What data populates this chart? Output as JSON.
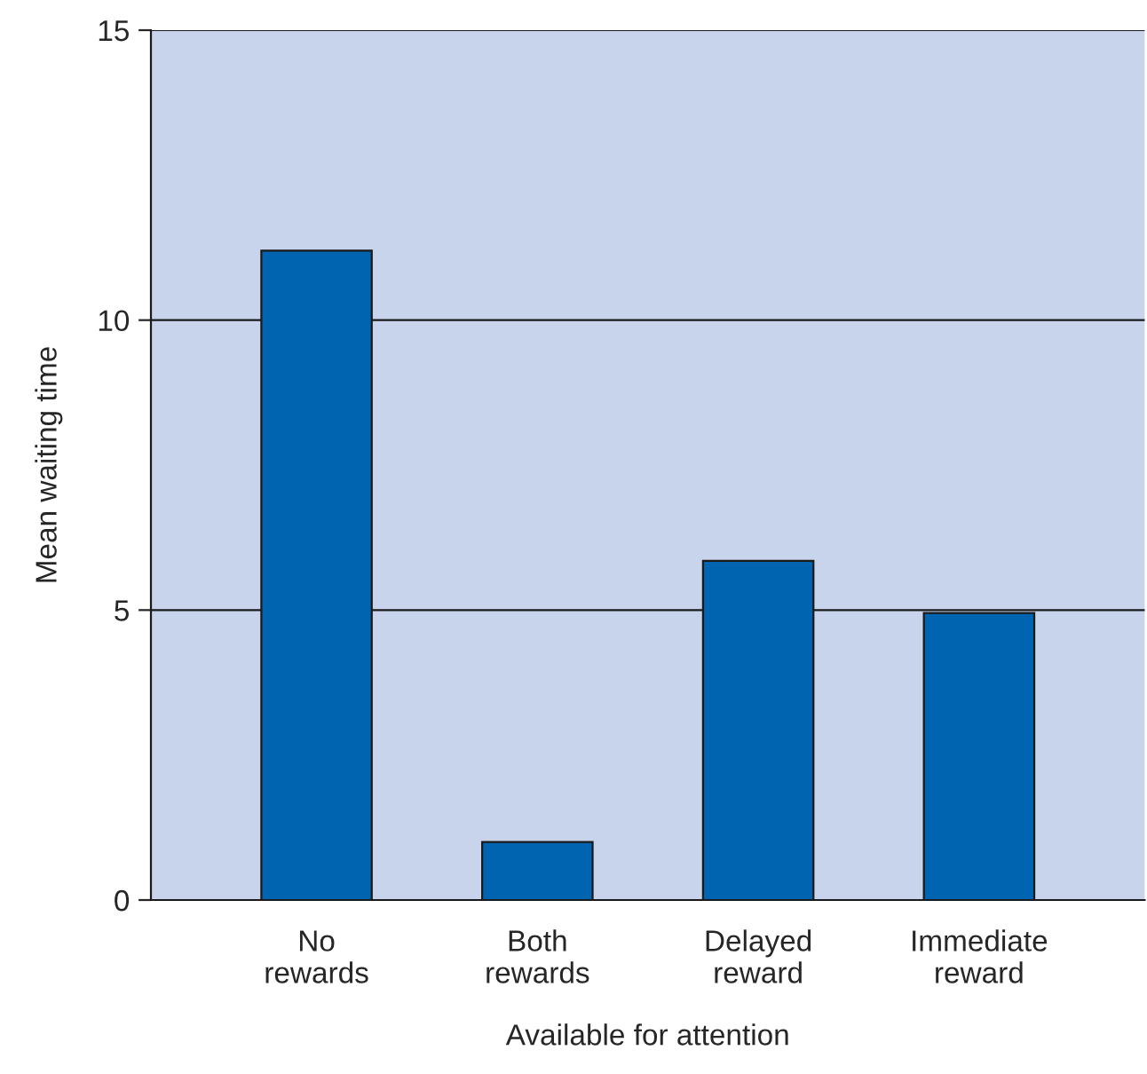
{
  "chart_data": {
    "type": "bar",
    "xlabel": "Available for attention",
    "ylabel": "Mean waiting time",
    "categories": [
      "No\nrewards",
      "Both\nrewards",
      "Delayed\nreward",
      "Immediate\nreward"
    ],
    "values": [
      11.2,
      1.0,
      5.85,
      4.95
    ],
    "color": "#0064b0",
    "ylim": [
      0,
      15
    ],
    "yticks": [
      0,
      5,
      10,
      15
    ],
    "grid": "y"
  }
}
